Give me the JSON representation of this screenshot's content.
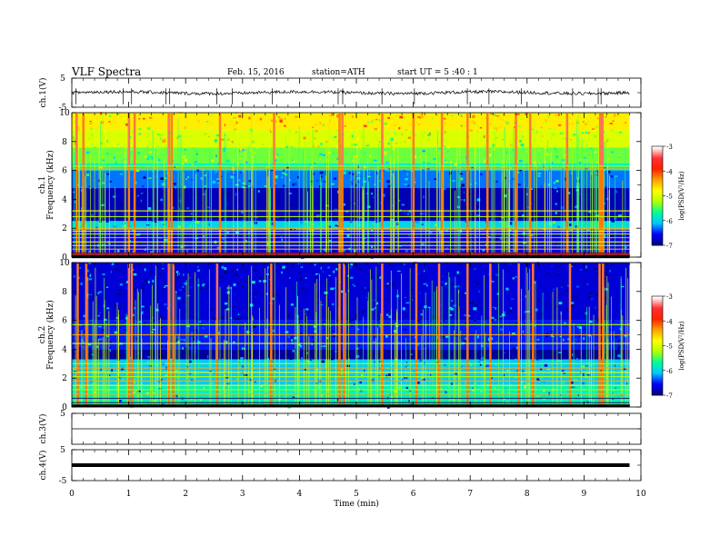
{
  "header": {
    "title": "VLF Spectra",
    "date": "Feb. 15, 2016",
    "station": "station=ATH",
    "start": "start  UT  =   5  :40 : 1"
  },
  "chart_data": {
    "type": "heatmap",
    "title": "VLF Spectra",
    "xlabel": "Time  (min)",
    "xlim": [
      0,
      10
    ],
    "x_ticks": [
      "0",
      "1",
      "2",
      "3",
      "4",
      "5",
      "6",
      "7",
      "8",
      "9",
      "10"
    ],
    "data_end_min": 9.8,
    "panels": [
      {
        "id": "ch1-waveform",
        "type": "line",
        "ylabel": "ch.1(V)",
        "ylim": [
          -5,
          5
        ],
        "y_ticks": [
          "5",
          "-5"
        ],
        "baseline": 0,
        "note_values": "noisy trace around 0 V with spikes to about -4 V"
      },
      {
        "id": "ch1-spectrogram",
        "type": "heatmap",
        "ylabel_top": "ch.1",
        "ylabel": "Frequency  (kHz)",
        "ylim": [
          0,
          10
        ],
        "y_ticks": [
          "0",
          "2",
          "4",
          "6",
          "8",
          "10"
        ],
        "colorbar": {
          "label": "log(PSD(V²/Hz)",
          "range": [
            -7,
            -3
          ],
          "ticks": [
            "-3",
            "-4",
            "-5",
            "-6",
            "-7"
          ]
        },
        "bands": [
          {
            "from": 0,
            "to": 1.9,
            "log_psd": -6.6
          },
          {
            "from": 1.9,
            "to": 2.5,
            "log_psd": -6.0
          },
          {
            "from": 2.5,
            "to": 4.8,
            "log_psd": -6.8
          },
          {
            "from": 4.8,
            "to": 6.0,
            "log_psd": -6.3
          },
          {
            "from": 6.0,
            "to": 6.5,
            "log_psd": -5.8
          },
          {
            "from": 6.5,
            "to": 7.6,
            "log_psd": -5.4
          },
          {
            "from": 7.6,
            "to": 8.8,
            "log_psd": -5.0
          },
          {
            "from": 8.8,
            "to": 10,
            "log_psd": -4.7
          }
        ]
      },
      {
        "id": "ch2-spectrogram",
        "type": "heatmap",
        "ylabel_top": "ch.2",
        "ylabel": "Frequency  (kHz)",
        "ylim": [
          0,
          10
        ],
        "y_ticks": [
          "0",
          "2",
          "4",
          "6",
          "8",
          "10"
        ],
        "colorbar": {
          "label": "log(PSD(V²/Hz)",
          "range": [
            -7,
            -3
          ],
          "ticks": [
            "-3",
            "-4",
            "-5",
            "-6",
            "-7"
          ]
        },
        "bands": [
          {
            "from": 0,
            "to": 1.5,
            "log_psd": -5.8
          },
          {
            "from": 1.5,
            "to": 3.3,
            "log_psd": -6.1
          },
          {
            "from": 3.3,
            "to": 4.0,
            "log_psd": -6.9
          },
          {
            "from": 4.0,
            "to": 6.0,
            "log_psd": -6.5
          },
          {
            "from": 6.0,
            "to": 10,
            "log_psd": -6.7
          }
        ]
      },
      {
        "id": "ch3-waveform",
        "type": "line",
        "ylabel": "ch.3(V)",
        "ylim": [
          -5,
          5
        ],
        "y_ticks": [
          "5"
        ],
        "baseline": 0
      },
      {
        "id": "ch4-waveform",
        "type": "line",
        "ylabel": "ch.4(V)",
        "ylim": [
          -5,
          5
        ],
        "y_ticks": [
          "5",
          "-5"
        ],
        "baseline": 0,
        "note_values": "flat trace at 0 V"
      }
    ],
    "ch1_spikes_min": [
      0.07,
      0.9,
      1.05,
      1.65,
      1.72,
      2.55,
      2.82,
      3.52,
      4.68,
      4.76,
      5.45,
      6.02,
      6.95,
      7.33,
      7.9,
      8.8,
      9.25,
      9.3
    ],
    "ch1_emission_bursts_min": [
      0.08,
      0.2,
      1.0,
      1.1,
      1.7,
      1.75,
      2.6,
      3.55,
      4.7,
      4.75,
      5.45,
      6.0,
      6.5,
      6.95,
      7.3,
      7.8,
      8.05,
      8.7,
      9.28,
      9.32
    ],
    "ch2_emission_bursts_min": [
      0.1,
      0.25,
      1.0,
      1.05,
      1.7,
      1.78,
      2.55,
      3.5,
      4.7,
      4.78,
      5.45,
      6.05,
      6.45,
      6.95,
      7.35,
      7.85,
      8.1,
      8.75,
      9.27,
      9.33
    ]
  },
  "colors": {
    "colormap": [
      "#000080",
      "#0000ff",
      "#00c8ff",
      "#00ff96",
      "#b4ff00",
      "#ffff00",
      "#ffa000",
      "#ff2000",
      "#ff3030",
      "#ffffff"
    ]
  }
}
